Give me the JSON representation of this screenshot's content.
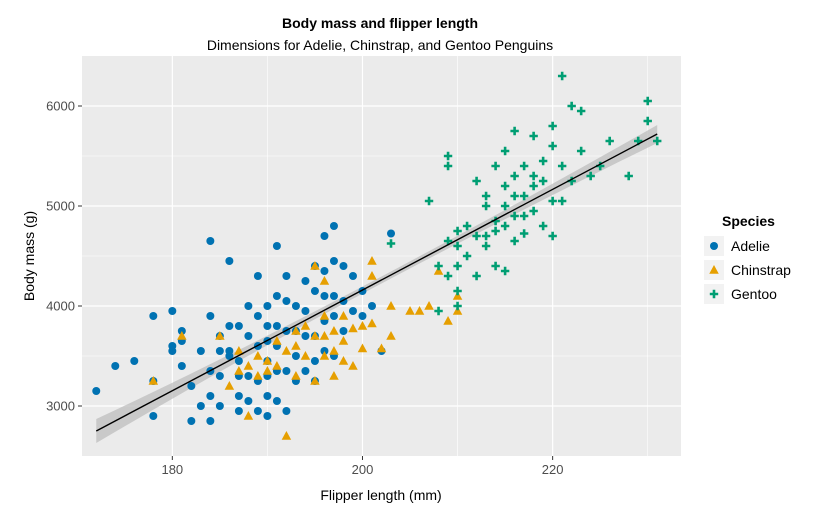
{
  "chart_data": {
    "type": "scatter",
    "title": "Body mass and flipper length",
    "subtitle": "Dimensions for Adelie, Chinstrap, and Gentoo Penguins",
    "xlabel": "Flipper length (mm)",
    "ylabel": "Body mass (g)",
    "xlim": [
      170.5,
      233.5
    ],
    "ylim": [
      2500,
      6500
    ],
    "xticks": [
      180,
      200,
      220
    ],
    "xtick_labels": [
      "180",
      "200",
      "220"
    ],
    "yticks": [
      3000,
      4000,
      5000,
      6000
    ],
    "ytick_labels": [
      "3000",
      "4000",
      "5000",
      "6000"
    ],
    "grid": true,
    "legend": {
      "title": "Species",
      "placement": "right"
    },
    "series": [
      {
        "name": "Adelie",
        "color": "#0072B2",
        "marker": "circle",
        "points": [
          [
            172,
            3150
          ],
          [
            174,
            3400
          ],
          [
            176,
            3450
          ],
          [
            178,
            3900
          ],
          [
            178,
            3250
          ],
          [
            178,
            2900
          ],
          [
            180,
            3950
          ],
          [
            180,
            3600
          ],
          [
            180,
            3550
          ],
          [
            181,
            3750
          ],
          [
            181,
            3650
          ],
          [
            181,
            3400
          ],
          [
            182,
            3200
          ],
          [
            182,
            2850
          ],
          [
            183,
            3550
          ],
          [
            183,
            3000
          ],
          [
            184,
            4650
          ],
          [
            184,
            3900
          ],
          [
            184,
            3350
          ],
          [
            184,
            3100
          ],
          [
            184,
            2850
          ],
          [
            185,
            3700
          ],
          [
            185,
            3550
          ],
          [
            185,
            3300
          ],
          [
            185,
            3000
          ],
          [
            186,
            4450
          ],
          [
            186,
            3800
          ],
          [
            186,
            3550
          ],
          [
            186,
            3500
          ],
          [
            187,
            3800
          ],
          [
            187,
            3450
          ],
          [
            187,
            3300
          ],
          [
            187,
            3100
          ],
          [
            187,
            2950
          ],
          [
            188,
            4000
          ],
          [
            188,
            3700
          ],
          [
            188,
            3300
          ],
          [
            188,
            3050
          ],
          [
            189,
            4300
          ],
          [
            189,
            3900
          ],
          [
            189,
            3600
          ],
          [
            189,
            3250
          ],
          [
            189,
            2950
          ],
          [
            190,
            4000
          ],
          [
            190,
            3800
          ],
          [
            190,
            3650
          ],
          [
            190,
            3450
          ],
          [
            190,
            3300
          ],
          [
            190,
            3100
          ],
          [
            190,
            2900
          ],
          [
            191,
            4600
          ],
          [
            191,
            4100
          ],
          [
            191,
            3800
          ],
          [
            191,
            3600
          ],
          [
            191,
            3350
          ],
          [
            191,
            3050
          ],
          [
            192,
            4300
          ],
          [
            192,
            4050
          ],
          [
            192,
            3750
          ],
          [
            192,
            3350
          ],
          [
            192,
            2950
          ],
          [
            193,
            4000
          ],
          [
            193,
            3750
          ],
          [
            193,
            3500
          ],
          [
            193,
            3250
          ],
          [
            194,
            4250
          ],
          [
            194,
            3950
          ],
          [
            194,
            3700
          ],
          [
            194,
            3350
          ],
          [
            195,
            4400
          ],
          [
            195,
            4150
          ],
          [
            195,
            3700
          ],
          [
            195,
            3450
          ],
          [
            195,
            3250
          ],
          [
            196,
            4700
          ],
          [
            196,
            4350
          ],
          [
            196,
            4100
          ],
          [
            196,
            3850
          ],
          [
            196,
            3550
          ],
          [
            197,
            4800
          ],
          [
            197,
            4450
          ],
          [
            197,
            4100
          ],
          [
            197,
            3900
          ],
          [
            197,
            3500
          ],
          [
            198,
            4400
          ],
          [
            198,
            4050
          ],
          [
            198,
            3750
          ],
          [
            199,
            4300
          ],
          [
            199,
            3950
          ],
          [
            200,
            4150
          ],
          [
            200,
            3900
          ],
          [
            201,
            4000
          ],
          [
            202,
            3550
          ],
          [
            203,
            4725
          ]
        ]
      },
      {
        "name": "Chinstrap",
        "color": "#E69F00",
        "marker": "triangle",
        "points": [
          [
            178,
            3250
          ],
          [
            181,
            3700
          ],
          [
            185,
            3700
          ],
          [
            186,
            3200
          ],
          [
            187,
            3350
          ],
          [
            187,
            3550
          ],
          [
            188,
            3400
          ],
          [
            188,
            2900
          ],
          [
            189,
            3300
          ],
          [
            189,
            3500
          ],
          [
            190,
            3350
          ],
          [
            190,
            3450
          ],
          [
            191,
            3650
          ],
          [
            191,
            3400
          ],
          [
            192,
            3550
          ],
          [
            192,
            2700
          ],
          [
            193,
            3300
          ],
          [
            193,
            3600
          ],
          [
            193,
            3750
          ],
          [
            194,
            3500
          ],
          [
            194,
            3800
          ],
          [
            195,
            3700
          ],
          [
            195,
            3250
          ],
          [
            195,
            4400
          ],
          [
            196,
            3700
          ],
          [
            196,
            3500
          ],
          [
            196,
            3900
          ],
          [
            196,
            4250
          ],
          [
            197,
            3300
          ],
          [
            197,
            3750
          ],
          [
            197,
            3550
          ],
          [
            198,
            3450
          ],
          [
            198,
            3650
          ],
          [
            198,
            3900
          ],
          [
            199,
            3400
          ],
          [
            199,
            3775
          ],
          [
            200,
            3575
          ],
          [
            200,
            3800
          ],
          [
            201,
            3825
          ],
          [
            201,
            4300
          ],
          [
            201,
            4450
          ],
          [
            202,
            3575
          ],
          [
            203,
            3700
          ],
          [
            203,
            4000
          ],
          [
            205,
            3950
          ],
          [
            206,
            3950
          ],
          [
            207,
            4000
          ],
          [
            208,
            4350
          ],
          [
            209,
            3850
          ],
          [
            210,
            3950
          ],
          [
            210,
            4100
          ]
        ]
      },
      {
        "name": "Gentoo",
        "color": "#009E73",
        "marker": "plus",
        "points": [
          [
            203,
            4625
          ],
          [
            207,
            5050
          ],
          [
            208,
            4400
          ],
          [
            208,
            3950
          ],
          [
            209,
            4650
          ],
          [
            209,
            4300
          ],
          [
            209,
            5400
          ],
          [
            209,
            5500
          ],
          [
            210,
            4750
          ],
          [
            210,
            4600
          ],
          [
            210,
            4400
          ],
          [
            210,
            4150
          ],
          [
            210,
            4000
          ],
          [
            211,
            4800
          ],
          [
            211,
            4500
          ],
          [
            212,
            5250
          ],
          [
            212,
            4300
          ],
          [
            212,
            4700
          ],
          [
            213,
            5000
          ],
          [
            213,
            4700
          ],
          [
            213,
            4600
          ],
          [
            213,
            5100
          ],
          [
            214,
            5400
          ],
          [
            214,
            4400
          ],
          [
            214,
            4850
          ],
          [
            214,
            4750
          ],
          [
            215,
            5200
          ],
          [
            215,
            5550
          ],
          [
            215,
            4800
          ],
          [
            215,
            5000
          ],
          [
            215,
            4350
          ],
          [
            216,
            5100
          ],
          [
            216,
            4650
          ],
          [
            216,
            4900
          ],
          [
            216,
            5750
          ],
          [
            216,
            5300
          ],
          [
            217,
            5100
          ],
          [
            217,
            5400
          ],
          [
            217,
            4900
          ],
          [
            217,
            4725
          ],
          [
            218,
            4950
          ],
          [
            218,
            5200
          ],
          [
            218,
            5700
          ],
          [
            218,
            5300
          ],
          [
            219,
            4800
          ],
          [
            219,
            5250
          ],
          [
            219,
            5450
          ],
          [
            220,
            5050
          ],
          [
            220,
            5600
          ],
          [
            220,
            4700
          ],
          [
            220,
            5800
          ],
          [
            221,
            5050
          ],
          [
            221,
            6300
          ],
          [
            221,
            5400
          ],
          [
            222,
            5250
          ],
          [
            222,
            6000
          ],
          [
            223,
            5950
          ],
          [
            223,
            5550
          ],
          [
            224,
            5300
          ],
          [
            225,
            5400
          ],
          [
            226,
            5650
          ],
          [
            228,
            5300
          ],
          [
            229,
            5650
          ],
          [
            230,
            5850
          ],
          [
            230,
            6050
          ],
          [
            231,
            5650
          ]
        ]
      }
    ],
    "fit": {
      "type": "linear",
      "x": [
        172,
        231
      ],
      "y": [
        2750,
        5720
      ],
      "ci_halfwidth_ends": [
        120,
        90
      ],
      "ci_halfwidth_mid": 35,
      "line_color": "#000000",
      "band_color": "#bdbdbd"
    },
    "panel_background": "#ebebeb",
    "grid_color": "#ffffff"
  }
}
